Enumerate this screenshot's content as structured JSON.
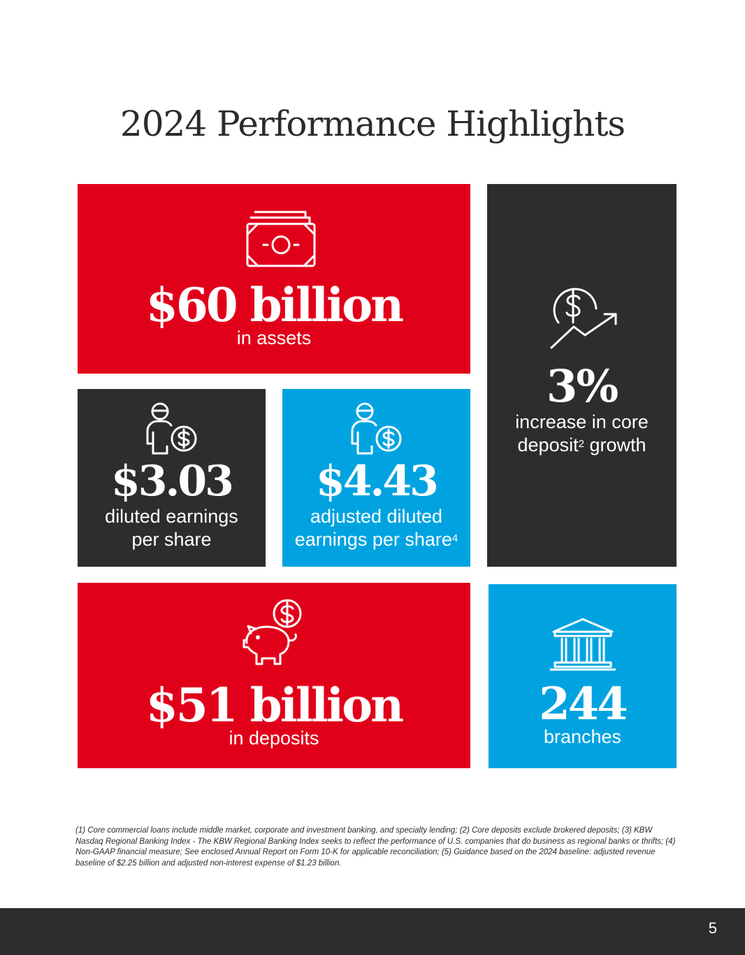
{
  "page": {
    "title": "2024 Performance Highlights",
    "page_number": "5"
  },
  "tiles": {
    "assets": {
      "value": "$60 billion",
      "label": "in assets",
      "icon": "cash-icon"
    },
    "deposit_growth": {
      "value": "3%",
      "label_line1": "increase in core",
      "label_line2_pre": "deposit",
      "label_line2_sup": "2",
      "label_line2_post": " growth",
      "icon": "dollar-growth-icon"
    },
    "eps": {
      "value": "$3.03",
      "label_line1": "diluted earnings",
      "label_line2": "per share",
      "icon": "person-dollar-icon"
    },
    "adj_eps": {
      "value": "$4.43",
      "label_line1": "adjusted diluted",
      "label_line2": "earnings per share",
      "label_sup": "4",
      "icon": "person-dollar-icon"
    },
    "deposits": {
      "value": "$51 billion",
      "label": "in deposits",
      "icon": "piggy-bank-icon"
    },
    "branches": {
      "value": "244",
      "label": "branches",
      "icon": "bank-building-icon"
    }
  },
  "colors": {
    "red": "#e1001a",
    "dark": "#2d2d2d",
    "blue": "#00a3e0"
  },
  "footnote": "(1) Core commercial loans include middle market, corporate and investment banking, and specialty lending; (2) Core deposits exclude brokered deposits; (3) KBW Nasdaq Regional Banking Index - The KBW Regional Banking Index seeks to reflect the performance of U.S. companies that do business as regional banks or thrifts; (4) Non-GAAP financial measure; See enclosed Annual Report on Form 10-K for applicable reconciliation; (5) Guidance based on the 2024 baseline: adjusted revenue baseline of $2.25 billion and adjusted non-interest expense of $1.23 billion."
}
